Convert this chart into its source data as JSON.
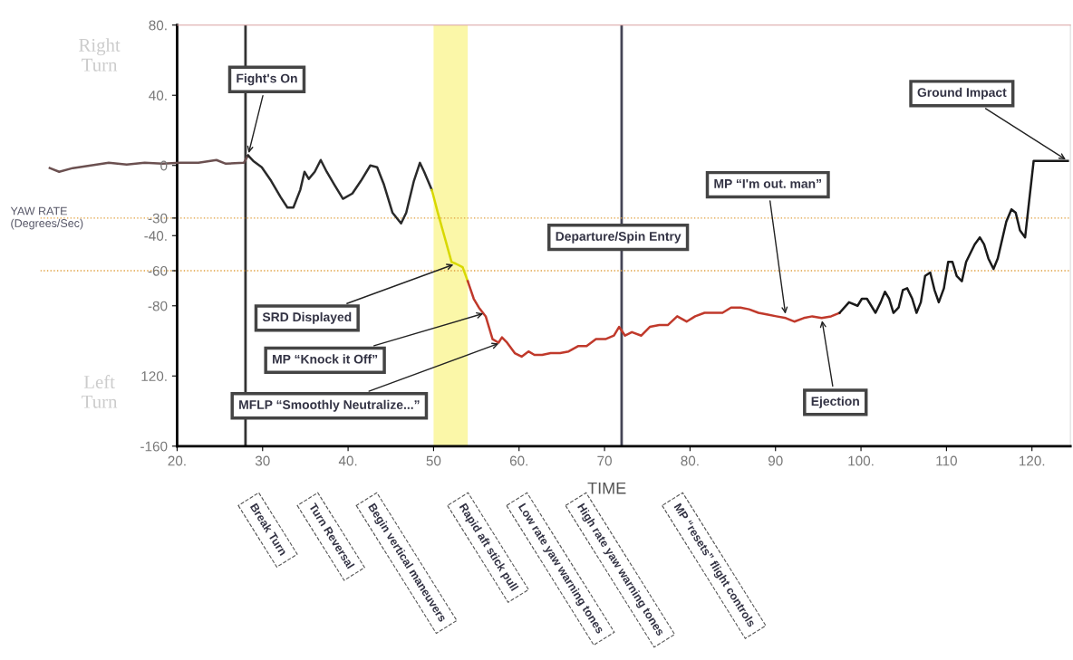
{
  "chart_data": {
    "type": "line",
    "xlabel": "TIME",
    "ylabel": "YAW RATE\n(Degrees/Sec)",
    "xlim": [
      4,
      124.5
    ],
    "ylim": [
      -160,
      80
    ],
    "xticks": [
      {
        "value": 20,
        "label": "20."
      },
      30,
      {
        "value": 40,
        "label": "40."
      },
      50,
      {
        "value": 60,
        "label": "60."
      },
      70,
      {
        "value": 80,
        "label": "80."
      },
      90,
      {
        "value": 100,
        "label": "100."
      },
      110,
      {
        "value": 120,
        "label": "120."
      }
    ],
    "yticks": [
      {
        "value": 80,
        "label": "80."
      },
      {
        "value": 40,
        "label": "40."
      },
      0,
      {
        "value": -30,
        "label": "-30"
      },
      {
        "value": -40,
        "label": "-40."
      },
      {
        "value": -60,
        "label": "-60"
      },
      {
        "value": -80,
        "label": "-80"
      },
      {
        "value": -120,
        "label": "120."
      },
      {
        "value": -160,
        "label": "-160"
      }
    ],
    "grid": false,
    "legend": false,
    "marker": "none",
    "line_style": "solid",
    "series": [
      {
        "color": "#6b5050",
        "x": [
          5.1,
          6.2,
          7.8,
          9.9,
          12.0,
          14.1,
          16.2,
          18.3,
          20.4,
          22.5,
          24.6,
          25.7,
          27.8,
          28.3
        ],
        "values": [
          -1.5,
          -3.6,
          -1.5,
          0,
          1.5,
          0.5,
          1.5,
          1,
          1.5,
          1.5,
          3.1,
          1,
          1.5,
          5.7
        ]
      },
      {
        "color": "#2a2a2a",
        "x": [
          28.3,
          28.9,
          29.9,
          31.0,
          32.1,
          32.9,
          33.6,
          34.4,
          34.9,
          35.4,
          36.1,
          36.8,
          37.5,
          38.4,
          39.4,
          40.5,
          41.5,
          42.6,
          43.4,
          44.2,
          45.2,
          46.2,
          46.8,
          47.7,
          48.4,
          48.9,
          49.8
        ],
        "values": [
          5.7,
          2.6,
          -1,
          -8.8,
          -18,
          -24,
          -24,
          -14,
          -3.6,
          -7.7,
          -3.6,
          3.1,
          -3.6,
          -11,
          -19,
          -16,
          -8.8,
          0,
          -1,
          -11,
          -27,
          -33,
          -27,
          -8.8,
          1.5,
          -3.6,
          -14
        ]
      },
      {
        "color": "#d8d800",
        "x": [
          49.8,
          50.5,
          51.3,
          52.1,
          52.6,
          53.4,
          54.0
        ],
        "values": [
          -14,
          -27,
          -41,
          -55,
          -56,
          -58,
          -66
        ]
      },
      {
        "color": "#c0392b",
        "x": [
          54.0,
          54.7,
          55.3,
          56.1,
          56.9,
          57.6,
          58.0,
          58.6,
          59.5,
          60.3,
          61.1,
          61.8,
          62.7,
          63.7,
          64.8,
          65.8,
          66.9,
          67.9,
          69.0,
          70.1,
          71.1,
          71.7,
          72.4,
          73.2,
          74.3,
          75.3,
          76.4,
          77.4,
          78.5,
          79.6,
          80.6,
          81.7,
          82.7,
          83.8,
          84.8,
          85.9,
          86.9,
          88.0,
          89.1,
          90.1,
          91.2,
          92.2,
          93.3,
          94.3,
          95.4,
          96.5,
          97.5
        ],
        "values": [
          -66,
          -76,
          -81,
          -86,
          -99,
          -101,
          -98,
          -101,
          -107,
          -109,
          -106,
          -108,
          -108,
          -107,
          -107,
          -106,
          -103,
          -103,
          -99,
          -99,
          -97,
          -92,
          -97,
          -95,
          -97,
          -92,
          -91,
          -91,
          -86,
          -89,
          -86,
          -84,
          -84,
          -84,
          -81,
          -81,
          -82,
          -84,
          -85,
          -86,
          -87,
          -89,
          -87,
          -86,
          -87,
          -86,
          -84
        ]
      },
      {
        "color": "#1a1a1a",
        "x": [
          97.5,
          98.6,
          99.6,
          100.1,
          100.7,
          101.2,
          101.7,
          102.3,
          102.8,
          103.3,
          103.8,
          104.4,
          104.9,
          105.4,
          106.0,
          106.5,
          107.0,
          107.5,
          108.1,
          108.6,
          109.1,
          109.7,
          110.2,
          110.7,
          111.2,
          111.8,
          112.3,
          113.3,
          113.9,
          114.4,
          114.9,
          115.5,
          116.0,
          117.0,
          117.6,
          118.1,
          118.6,
          119.2,
          119.7,
          120.2,
          120.7,
          124.2
        ],
        "values": [
          -84,
          -78,
          -80,
          -76,
          -76,
          -80,
          -84,
          -78,
          -72,
          -76,
          -84,
          -81,
          -71,
          -70,
          -76,
          -84,
          -78,
          -63,
          -61,
          -71,
          -78,
          -70,
          -55,
          -55,
          -63,
          -66,
          -55,
          -45,
          -41,
          -45,
          -53,
          -59,
          -53,
          -32,
          -25,
          -27,
          -37,
          -41,
          -19,
          2.6,
          2.6,
          2.6
        ]
      }
    ],
    "ref_lines": [
      {
        "axis": "x",
        "value": 28,
        "color": "#333333",
        "line_style": "solid"
      },
      {
        "axis": "x",
        "value": 72,
        "color": "#444455",
        "line_style": "solid"
      },
      {
        "axis": "y",
        "value": -30,
        "color": "#e0a040",
        "line_style": "dotted"
      },
      {
        "axis": "y",
        "value": -60,
        "color": "#e0a040",
        "line_style": "dotted"
      }
    ],
    "bands": [
      {
        "axis": "x",
        "from": 50,
        "to": 54,
        "color": "#fbf7a8"
      }
    ],
    "annotations": [
      {
        "text": "Fight's On",
        "x": 28.3,
        "y": 5.7
      },
      {
        "text": "SRD Displayed",
        "x": 52.6,
        "y": -56
      },
      {
        "text": "MP “Knock it Off”",
        "x": 56.1,
        "y": -84
      },
      {
        "text": "MFLP “Smoothly Neutralize...”",
        "x": 57.9,
        "y": -101
      },
      {
        "text": "MP “I'm out. man”",
        "x": 91.2,
        "y": -86
      },
      {
        "text": "Ejection",
        "x": 95.4,
        "y": -87
      },
      {
        "text": "Ground Impact",
        "x": 124.2,
        "y": 2.6
      },
      "Departure/Spin Entry",
      "Right\nTurn",
      "Left\nTurn",
      "Break Turn",
      "Turn Reversal",
      "Begin vertical maneuvers",
      "Rapid aft stick pull",
      "Low rate yaw warning tones",
      "High rate yaw warning tones",
      "MP “resets” flight controls"
    ]
  }
}
